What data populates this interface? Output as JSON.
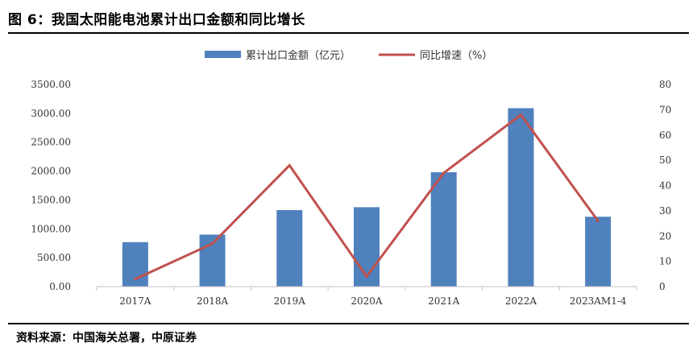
{
  "title": "图 6：我国太阳能电池累计出口金额和同比增长",
  "source": "资料来源：中国海关总署，中原证券",
  "colors": {
    "bar": "#4F81BD",
    "line": "#C0504D",
    "axis": "#bfbfbf"
  },
  "chart_data": {
    "type": "bar",
    "categories": [
      "2017A",
      "2018A",
      "2019A",
      "2020A",
      "2021A",
      "2022A",
      "2023AM1-4"
    ],
    "series": [
      {
        "name": "累计出口金额（亿元）",
        "type": "bar",
        "axis": "left",
        "values": [
          770,
          900,
          1325,
          1375,
          1980,
          3090,
          1210
        ]
      },
      {
        "name": "同比增速（%）",
        "type": "line",
        "axis": "right",
        "values": [
          3,
          17,
          48,
          4,
          45,
          68,
          26
        ]
      }
    ],
    "y_left": {
      "ylim": [
        0,
        3500
      ],
      "ticks": [
        "0.00",
        "500.00",
        "1000.00",
        "1500.00",
        "2000.00",
        "2500.00",
        "3000.00",
        "3500.00"
      ]
    },
    "y_right": {
      "ylim": [
        0,
        80
      ],
      "ticks": [
        "0",
        "10",
        "20",
        "30",
        "40",
        "50",
        "60",
        "70",
        "80"
      ]
    },
    "legend": "top-center",
    "grid": false
  }
}
